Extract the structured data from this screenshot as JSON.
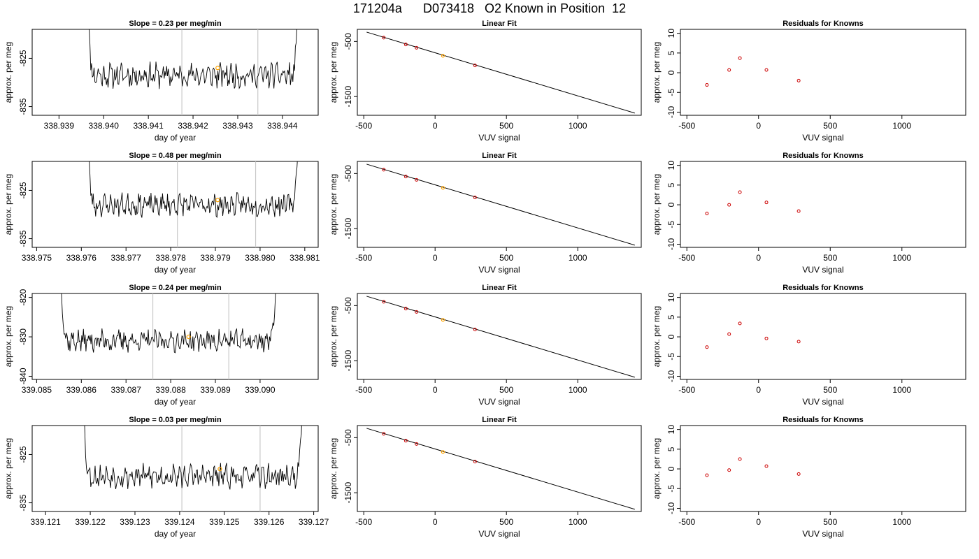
{
  "page": {
    "title": "171204a      D073418   O2 Known in Position  12"
  },
  "chart_data": {
    "type": "line",
    "colors": {
      "line": "#000000",
      "vline": "#c8c8c8",
      "point": "#cc0000",
      "highlight": "#ffa500",
      "axis": "#000000"
    },
    "rows": [
      {
        "time": {
          "title": "Slope =  0.23  per meg/min",
          "xlabel": "day of year",
          "ylabel": "approx. per meg",
          "xlim": [
            338.9384,
            338.9448
          ],
          "ylim": [
            -836.8,
            -819.0
          ],
          "xticks": [
            338.939,
            338.94,
            338.941,
            338.942,
            338.943,
            338.944
          ],
          "xtick_labels": [
            "338.939",
            "338.940",
            "338.941",
            "338.942",
            "338.943",
            "338.944"
          ],
          "yticks": [
            -835,
            -825
          ],
          "ytick_labels": [
            "-835",
            "-825"
          ],
          "t_start": 338.9396,
          "t_end": 338.9444,
          "baseline": -828.5,
          "noise": 2.0,
          "seed": 11,
          "vlines": [
            338.94175,
            338.94345
          ],
          "marker": [
            338.94255,
            -827.0
          ]
        },
        "fit": {
          "title": "Linear Fit",
          "xlabel": "VUV signal",
          "ylabel": "approx. per meg",
          "xlim": [
            -545,
            1445
          ],
          "ylim": [
            -1840,
            -280
          ],
          "xticks": [
            -500,
            0,
            500,
            1000
          ],
          "xtick_labels": [
            "-500",
            "0",
            "500",
            "1000"
          ],
          "yticks": [
            -500,
            -1500
          ],
          "ytick_labels": [
            "-500",
            "-1500"
          ],
          "line_x": [
            -480,
            1400
          ],
          "line_y": [
            -330,
            -1800
          ],
          "points": [
            {
              "x": -360,
              "y": -430
            },
            {
              "x": -205,
              "y": -555
            },
            {
              "x": -130,
              "y": -615
            },
            {
              "x": 280,
              "y": -935
            }
          ],
          "highlight": {
            "x": 55,
            "y": -760
          }
        },
        "resid": {
          "title": "Residuals for Knowns",
          "xlabel": "VUV signal",
          "ylabel": "approx. per meg",
          "xlim": [
            -545,
            1445
          ],
          "ylim": [
            -10.8,
            11.0
          ],
          "xticks": [
            -500,
            0,
            500,
            1000
          ],
          "xtick_labels": [
            "-500",
            "0",
            "500",
            "1000"
          ],
          "yticks": [
            -10,
            -5,
            0,
            5,
            10
          ],
          "ytick_labels": [
            "-10",
            "-5",
            "0",
            "5",
            "10"
          ],
          "points": [
            {
              "x": -360,
              "y": -3.1
            },
            {
              "x": -205,
              "y": 0.7
            },
            {
              "x": -130,
              "y": 3.7
            },
            {
              "x": 55,
              "y": 0.7
            },
            {
              "x": 280,
              "y": -2.0
            }
          ]
        }
      },
      {
        "time": {
          "title": "Slope =  0.48  per meg/min",
          "xlabel": "day of year",
          "ylabel": "approx. per meg",
          "xlim": [
            338.9749,
            338.9813
          ],
          "ylim": [
            -836.8,
            -819.0
          ],
          "xticks": [
            338.975,
            338.976,
            338.977,
            338.978,
            338.979,
            338.98,
            338.981
          ],
          "xtick_labels": [
            "338.975",
            "338.976",
            "338.977",
            "338.978",
            "338.979",
            "338.980",
            "338.981"
          ],
          "yticks": [
            -835,
            -825
          ],
          "ytick_labels": [
            "-835",
            "-825"
          ],
          "t_start": 338.9761,
          "t_end": 338.9809,
          "baseline": -828.0,
          "noise": 1.8,
          "seed": 23,
          "vlines": [
            338.97815,
            338.9799
          ],
          "marker": [
            338.97905,
            -827.0
          ]
        },
        "fit": {
          "title": "Linear Fit",
          "xlabel": "VUV signal",
          "ylabel": "approx. per meg",
          "xlim": [
            -545,
            1445
          ],
          "ylim": [
            -1840,
            -280
          ],
          "xticks": [
            -500,
            0,
            500,
            1000
          ],
          "xtick_labels": [
            "-500",
            "0",
            "500",
            "1000"
          ],
          "yticks": [
            -500,
            -1500
          ],
          "ytick_labels": [
            "-500",
            "-1500"
          ],
          "line_x": [
            -480,
            1400
          ],
          "line_y": [
            -330,
            -1800
          ],
          "points": [
            {
              "x": -360,
              "y": -430
            },
            {
              "x": -205,
              "y": -555
            },
            {
              "x": -130,
              "y": -615
            },
            {
              "x": 280,
              "y": -935
            }
          ],
          "highlight": {
            "x": 55,
            "y": -760
          }
        },
        "resid": {
          "title": "Residuals for Knowns",
          "xlabel": "VUV signal",
          "ylabel": "approx. per meg",
          "xlim": [
            -545,
            1445
          ],
          "ylim": [
            -10.8,
            11.0
          ],
          "xticks": [
            -500,
            0,
            500,
            1000
          ],
          "xtick_labels": [
            "-500",
            "0",
            "500",
            "1000"
          ],
          "yticks": [
            -10,
            -5,
            0,
            5,
            10
          ],
          "ytick_labels": [
            "-10",
            "-5",
            "0",
            "5",
            "10"
          ],
          "points": [
            {
              "x": -360,
              "y": -2.2
            },
            {
              "x": -205,
              "y": 0.0
            },
            {
              "x": -130,
              "y": 3.2
            },
            {
              "x": 55,
              "y": 0.6
            },
            {
              "x": 280,
              "y": -1.6
            }
          ]
        }
      },
      {
        "time": {
          "title": "Slope =  0.24  per meg/min",
          "xlabel": "day of year",
          "ylabel": "approx. per meg",
          "xlim": [
            339.0849,
            339.0913
          ],
          "ylim": [
            -840.8,
            -819.0
          ],
          "xticks": [
            339.085,
            339.086,
            339.087,
            339.088,
            339.089,
            339.09
          ],
          "xtick_labels": [
            "339.085",
            "339.086",
            "339.087",
            "339.088",
            "339.089",
            "339.090"
          ],
          "yticks": [
            -840,
            -830,
            -820
          ],
          "ytick_labels": [
            "-840",
            "-830",
            "-820"
          ],
          "t_start": 339.0855,
          "t_end": 339.0904,
          "baseline": -831.0,
          "noise": 2.2,
          "seed": 37,
          "vlines": [
            339.0876,
            339.0893
          ],
          "marker": [
            339.0884,
            -830.0
          ]
        },
        "fit": {
          "title": "Linear Fit",
          "xlabel": "VUV signal",
          "ylabel": "approx. per meg",
          "xlim": [
            -545,
            1445
          ],
          "ylim": [
            -1840,
            -280
          ],
          "xticks": [
            -500,
            0,
            500,
            1000
          ],
          "xtick_labels": [
            "-500",
            "0",
            "500",
            "1000"
          ],
          "yticks": [
            -500,
            -1500
          ],
          "ytick_labels": [
            "-500",
            "-1500"
          ],
          "line_x": [
            -480,
            1400
          ],
          "line_y": [
            -330,
            -1800
          ],
          "points": [
            {
              "x": -360,
              "y": -430
            },
            {
              "x": -205,
              "y": -555
            },
            {
              "x": -130,
              "y": -615
            },
            {
              "x": 280,
              "y": -935
            }
          ],
          "highlight": {
            "x": 55,
            "y": -760
          }
        },
        "resid": {
          "title": "Residuals for Knowns",
          "xlabel": "VUV signal",
          "ylabel": "approx. per meg",
          "xlim": [
            -545,
            1445
          ],
          "ylim": [
            -10.8,
            11.0
          ],
          "xticks": [
            -500,
            0,
            500,
            1000
          ],
          "xtick_labels": [
            "-500",
            "0",
            "500",
            "1000"
          ],
          "yticks": [
            -10,
            -5,
            0,
            5,
            10
          ],
          "ytick_labels": [
            "-10",
            "-5",
            "0",
            "5",
            "10"
          ],
          "points": [
            {
              "x": -360,
              "y": -2.6
            },
            {
              "x": -205,
              "y": 0.7
            },
            {
              "x": -130,
              "y": 3.4
            },
            {
              "x": 55,
              "y": -0.4
            },
            {
              "x": 280,
              "y": -1.2
            }
          ]
        }
      },
      {
        "time": {
          "title": "Slope =  0.03  per meg/min",
          "xlabel": "day of year",
          "ylabel": "approx. per meg",
          "xlim": [
            339.1207,
            339.1271
          ],
          "ylim": [
            -836.8,
            -819.0
          ],
          "xticks": [
            339.121,
            339.122,
            339.123,
            339.124,
            339.125,
            339.126,
            339.127
          ],
          "xtick_labels": [
            "339.121",
            "339.122",
            "339.123",
            "339.124",
            "339.125",
            "339.126",
            "339.127"
          ],
          "yticks": [
            -835,
            -825
          ],
          "ytick_labels": [
            "-835",
            "-825"
          ],
          "t_start": 339.1218,
          "t_end": 339.1268,
          "baseline": -829.5,
          "noise": 1.9,
          "seed": 53,
          "vlines": [
            339.12405,
            339.1258
          ],
          "marker": [
            339.1249,
            -828.0
          ]
        },
        "fit": {
          "title": "Linear Fit",
          "xlabel": "VUV signal",
          "ylabel": "approx. per meg",
          "xlim": [
            -545,
            1445
          ],
          "ylim": [
            -1840,
            -280
          ],
          "xticks": [
            -500,
            0,
            500,
            1000
          ],
          "xtick_labels": [
            "-500",
            "0",
            "500",
            "1000"
          ],
          "yticks": [
            -500,
            -1500
          ],
          "ytick_labels": [
            "-500",
            "-1500"
          ],
          "line_x": [
            -480,
            1400
          ],
          "line_y": [
            -330,
            -1800
          ],
          "points": [
            {
              "x": -360,
              "y": -430
            },
            {
              "x": -205,
              "y": -555
            },
            {
              "x": -130,
              "y": -615
            },
            {
              "x": 280,
              "y": -935
            }
          ],
          "highlight": {
            "x": 55,
            "y": -760
          }
        },
        "resid": {
          "title": "Residuals for Knowns",
          "xlabel": "VUV signal",
          "ylabel": "approx. per meg",
          "xlim": [
            -545,
            1445
          ],
          "ylim": [
            -10.8,
            11.0
          ],
          "xticks": [
            -500,
            0,
            500,
            1000
          ],
          "xtick_labels": [
            "-500",
            "0",
            "500",
            "1000"
          ],
          "yticks": [
            -10,
            -5,
            0,
            5,
            10
          ],
          "ytick_labels": [
            "-10",
            "-5",
            "0",
            "5",
            "10"
          ],
          "points": [
            {
              "x": -360,
              "y": -1.6
            },
            {
              "x": -205,
              "y": -0.3
            },
            {
              "x": -130,
              "y": 2.5
            },
            {
              "x": 55,
              "y": 0.7
            },
            {
              "x": 280,
              "y": -1.3
            }
          ]
        }
      }
    ]
  }
}
